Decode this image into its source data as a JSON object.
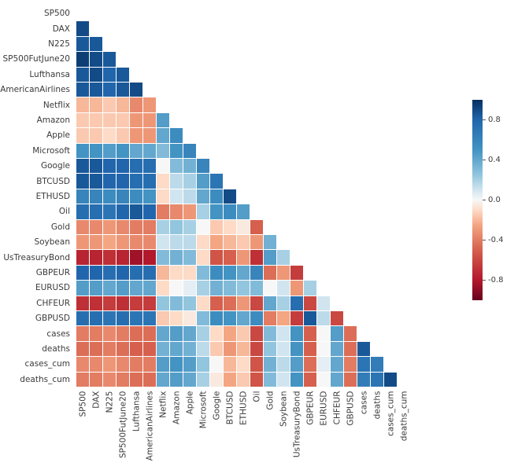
{
  "chart_data": {
    "type": "heatmap",
    "title": "",
    "subtitle": "",
    "description": "Lower-triangular correlation matrix heatmap (diagonal and upper triangle masked)",
    "labels": [
      "SP500",
      "DAX",
      "N225",
      "SP500FutJune20",
      "Lufthansa",
      "AmericanAirlines",
      "Netflix",
      "Amazon",
      "Apple",
      "Microsoft",
      "Google",
      "BTCUSD",
      "ETHUSD",
      "Oil",
      "Gold",
      "Soybean",
      "UsTreasuryBond",
      "GBPEUR",
      "EURUSD",
      "CHFEUR",
      "GBPUSD",
      "cases",
      "deaths",
      "cases_cum",
      "deaths_cum"
    ],
    "matrix_format": "row i holds correlations of labels[i] with labels[0..i-1]; diagonal excluded",
    "matrix": [
      [],
      [
        0.9
      ],
      [
        0.85,
        0.85
      ],
      [
        0.95,
        0.9,
        0.85
      ],
      [
        0.85,
        0.9,
        0.8,
        0.85
      ],
      [
        0.85,
        0.85,
        0.8,
        0.85,
        0.9
      ],
      [
        -0.2,
        -0.2,
        -0.15,
        -0.2,
        -0.35,
        -0.3
      ],
      [
        -0.15,
        -0.15,
        -0.15,
        -0.15,
        -0.3,
        -0.3,
        0.45
      ],
      [
        -0.15,
        -0.15,
        -0.1,
        -0.15,
        -0.3,
        -0.3,
        0.4,
        0.55
      ],
      [
        0.5,
        0.5,
        0.45,
        0.5,
        0.4,
        0.4,
        0.3,
        0.5,
        0.6
      ],
      [
        0.85,
        0.85,
        0.8,
        0.8,
        0.75,
        0.75,
        0.0,
        0.3,
        0.35,
        0.6
      ],
      [
        0.85,
        0.85,
        0.8,
        0.8,
        0.75,
        0.75,
        -0.1,
        0.15,
        0.2,
        0.45,
        0.7
      ],
      [
        0.6,
        0.6,
        0.55,
        0.6,
        0.55,
        0.5,
        -0.1,
        0.1,
        0.15,
        0.4,
        0.55,
        0.9
      ],
      [
        0.75,
        0.75,
        0.7,
        0.8,
        0.85,
        0.8,
        -0.4,
        -0.35,
        -0.3,
        0.2,
        0.5,
        0.55,
        0.45
      ],
      [
        -0.35,
        -0.35,
        -0.3,
        -0.35,
        -0.4,
        -0.4,
        0.2,
        0.25,
        0.2,
        0.0,
        -0.15,
        -0.1,
        -0.05,
        -0.5
      ],
      [
        -0.3,
        -0.3,
        -0.25,
        -0.3,
        -0.35,
        -0.35,
        0.1,
        0.15,
        0.15,
        -0.1,
        -0.25,
        -0.2,
        -0.15,
        -0.3,
        0.35
      ],
      [
        -0.75,
        -0.75,
        -0.7,
        -0.75,
        -0.85,
        -0.8,
        0.3,
        0.35,
        0.3,
        -0.1,
        -0.55,
        -0.5,
        -0.3,
        -0.7,
        0.45,
        0.2
      ],
      [
        0.8,
        0.8,
        0.75,
        0.8,
        0.75,
        0.75,
        -0.2,
        -0.1,
        -0.1,
        0.3,
        0.55,
        0.5,
        0.4,
        0.6,
        -0.45,
        -0.3,
        -0.65
      ],
      [
        0.45,
        0.45,
        0.4,
        0.45,
        0.4,
        0.4,
        -0.1,
        0.0,
        0.05,
        0.2,
        0.35,
        0.3,
        0.25,
        0.3,
        0.0,
        0.1,
        -0.3,
        0.2
      ],
      [
        -0.7,
        -0.7,
        -0.65,
        -0.7,
        -0.65,
        -0.65,
        0.25,
        0.3,
        0.25,
        -0.1,
        -0.5,
        -0.45,
        -0.3,
        -0.6,
        0.4,
        0.2,
        0.75,
        -0.6,
        0.1
      ],
      [
        0.75,
        0.75,
        0.7,
        0.75,
        0.7,
        0.7,
        -0.15,
        -0.1,
        -0.05,
        0.3,
        0.55,
        0.5,
        0.4,
        0.55,
        -0.4,
        -0.25,
        -0.65,
        0.85,
        0.15,
        -0.6
      ],
      [
        -0.4,
        -0.4,
        -0.35,
        -0.4,
        -0.45,
        -0.45,
        0.4,
        0.45,
        0.4,
        0.2,
        -0.1,
        -0.25,
        -0.15,
        -0.6,
        0.3,
        0.1,
        0.5,
        -0.5,
        0.0,
        0.45,
        -0.45
      ],
      [
        -0.45,
        -0.45,
        -0.4,
        -0.45,
        -0.5,
        -0.5,
        0.35,
        0.4,
        0.35,
        0.15,
        -0.15,
        -0.3,
        -0.2,
        -0.6,
        0.25,
        0.1,
        0.5,
        -0.5,
        0.0,
        0.4,
        -0.45,
        0.85
      ],
      [
        -0.35,
        -0.35,
        -0.3,
        -0.35,
        -0.4,
        -0.4,
        0.45,
        0.5,
        0.45,
        0.25,
        0.0,
        -0.2,
        -0.1,
        -0.55,
        0.35,
        0.15,
        0.45,
        -0.45,
        0.05,
        0.4,
        -0.4,
        0.7,
        0.65
      ],
      [
        -0.4,
        -0.4,
        -0.35,
        -0.4,
        -0.45,
        -0.45,
        0.4,
        0.45,
        0.4,
        0.2,
        -0.05,
        -0.25,
        -0.15,
        -0.55,
        0.3,
        0.1,
        0.5,
        -0.5,
        0.0,
        0.4,
        -0.45,
        0.65,
        0.7,
        0.9
      ]
    ],
    "vmin": -1,
    "vmax": 1,
    "colormap": {
      "name": "RdBu",
      "stops": [
        {
          "v": -1.0,
          "color": "#67001f"
        },
        {
          "v": -0.8,
          "color": "#b2182b"
        },
        {
          "v": -0.5,
          "color": "#d6604d"
        },
        {
          "v": -0.25,
          "color": "#f4a582"
        },
        {
          "v": -0.1,
          "color": "#fddbc7"
        },
        {
          "v": 0.0,
          "color": "#f7f7f7"
        },
        {
          "v": 0.1,
          "color": "#d1e5f0"
        },
        {
          "v": 0.25,
          "color": "#92c5de"
        },
        {
          "v": 0.5,
          "color": "#4393c3"
        },
        {
          "v": 0.8,
          "color": "#2166ac"
        },
        {
          "v": 1.0,
          "color": "#053061"
        }
      ]
    },
    "colorbar": {
      "tick_values": [
        0.8,
        0.4,
        0.0,
        -0.4,
        -0.8
      ],
      "tick_labels": [
        "0.8",
        "0.4",
        "0.0",
        "-0.4",
        "-0.8"
      ]
    },
    "legend_position": "right",
    "grid": false
  }
}
